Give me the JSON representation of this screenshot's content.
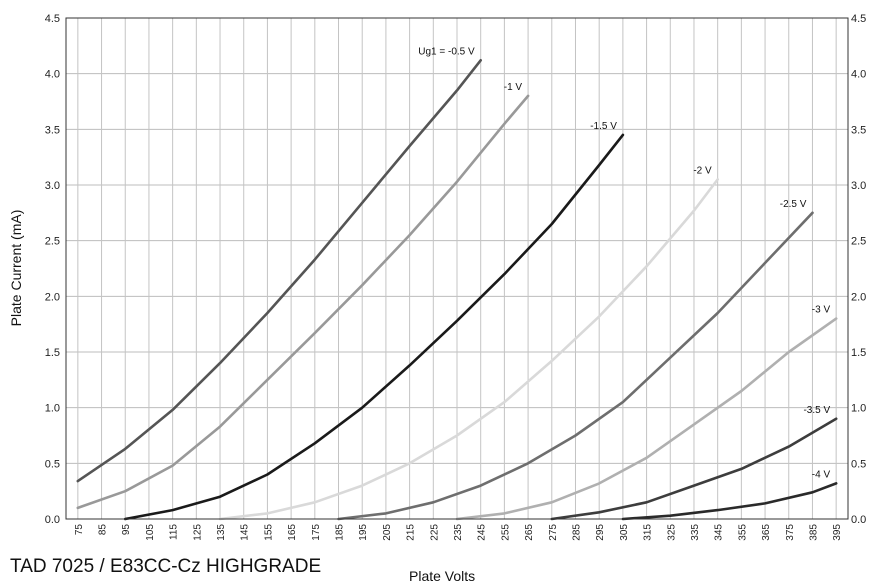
{
  "chart_data": {
    "type": "line",
    "caption": "TAD 7025 / E83CC-Cz HIGHGRADE",
    "xlabel": "Plate Volts",
    "ylabel": "Plate Current (mA)",
    "ylim": [
      0,
      4.5
    ],
    "yticks": [
      "0.0",
      "0.5",
      "1.0",
      "1.5",
      "2.0",
      "2.5",
      "3.0",
      "3.5",
      "4.0",
      "4.5"
    ],
    "y2ticks": [
      "0.0",
      "0.5",
      "1.0",
      "1.5",
      "2.0",
      "2.5",
      "3.0",
      "3.5",
      "4.0",
      "4.5"
    ],
    "xlim": [
      70,
      400
    ],
    "xticks": [
      "75",
      "85",
      "95",
      "105",
      "115",
      "125",
      "135",
      "145",
      "155",
      "165",
      "175",
      "185",
      "195",
      "205",
      "215",
      "225",
      "235",
      "245",
      "255",
      "265",
      "275",
      "285",
      "295",
      "305",
      "315",
      "325",
      "335",
      "345",
      "355",
      "365",
      "375",
      "385",
      "395"
    ],
    "grid": true,
    "series": [
      {
        "label": "Ug1 = -0.5 V",
        "color": "#555555",
        "x": [
          75,
          95,
          115,
          135,
          155,
          175,
          195,
          215,
          235,
          245
        ],
        "y": [
          0.34,
          0.63,
          0.98,
          1.4,
          1.85,
          2.33,
          2.84,
          3.35,
          3.85,
          4.12
        ]
      },
      {
        "label": "-1 V",
        "color": "#999999",
        "x": [
          75,
          95,
          115,
          135,
          155,
          175,
          195,
          215,
          235,
          255,
          265
        ],
        "y": [
          0.1,
          0.25,
          0.48,
          0.83,
          1.25,
          1.67,
          2.1,
          2.55,
          3.03,
          3.55,
          3.8
        ]
      },
      {
        "label": "-1.5 V",
        "color": "#1a1a1a",
        "x": [
          95,
          115,
          135,
          155,
          175,
          195,
          215,
          235,
          255,
          275,
          295,
          305
        ],
        "y": [
          0.0,
          0.08,
          0.2,
          0.4,
          0.68,
          1.0,
          1.38,
          1.78,
          2.2,
          2.65,
          3.18,
          3.45
        ]
      },
      {
        "label": "-2 V",
        "color": "#d9d9d9",
        "x": [
          135,
          155,
          175,
          195,
          215,
          235,
          255,
          275,
          295,
          315,
          335,
          345
        ],
        "y": [
          0.0,
          0.05,
          0.15,
          0.3,
          0.5,
          0.75,
          1.05,
          1.42,
          1.82,
          2.27,
          2.77,
          3.05
        ]
      },
      {
        "label": "-2.5 V",
        "color": "#6e6e6e",
        "x": [
          185,
          205,
          225,
          245,
          265,
          285,
          305,
          325,
          345,
          365,
          385
        ],
        "y": [
          0.0,
          0.05,
          0.15,
          0.3,
          0.5,
          0.75,
          1.05,
          1.45,
          1.85,
          2.3,
          2.75
        ]
      },
      {
        "label": "-3 V",
        "color": "#b0b0b0",
        "x": [
          235,
          255,
          275,
          295,
          315,
          335,
          355,
          375,
          395
        ],
        "y": [
          0.0,
          0.05,
          0.15,
          0.32,
          0.55,
          0.85,
          1.15,
          1.5,
          1.8
        ]
      },
      {
        "label": "-3.5 V",
        "color": "#3d3d3d",
        "x": [
          275,
          295,
          315,
          335,
          355,
          375,
          395
        ],
        "y": [
          0.0,
          0.06,
          0.15,
          0.3,
          0.45,
          0.65,
          0.9
        ]
      },
      {
        "label": "-4 V",
        "color": "#2a2a2a",
        "x": [
          305,
          325,
          345,
          365,
          385,
          395
        ],
        "y": [
          0.0,
          0.03,
          0.08,
          0.14,
          0.24,
          0.32
        ]
      }
    ]
  }
}
